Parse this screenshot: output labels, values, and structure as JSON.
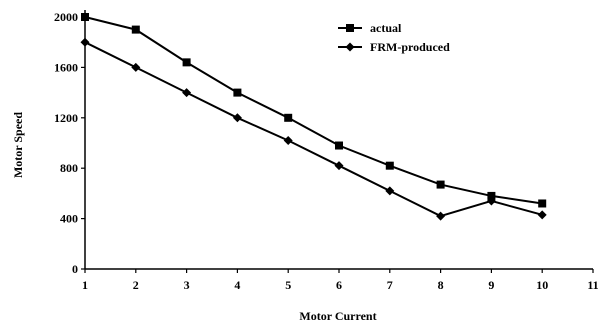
{
  "chart_data": {
    "type": "line",
    "xlabel": "Motor Current",
    "ylabel": "Motor Speed",
    "xlim": [
      1,
      11
    ],
    "ylim": [
      0,
      2000
    ],
    "x_ticks": [
      "1",
      "2",
      "3",
      "4",
      "5",
      "6",
      "7",
      "8",
      "9",
      "10",
      "11"
    ],
    "y_ticks": [
      "0",
      "400",
      "800",
      "1200",
      "1600",
      "2000"
    ],
    "grid": false,
    "legend_position": "top-right",
    "series": [
      {
        "name": "actual",
        "marker": "square",
        "x": [
          1,
          2,
          3,
          4,
          5,
          6,
          7,
          8,
          9,
          10
        ],
        "values": [
          2000,
          1900,
          1640,
          1400,
          1200,
          980,
          820,
          670,
          580,
          520
        ]
      },
      {
        "name": "FRM-produced",
        "marker": "diamond",
        "x": [
          1,
          2,
          3,
          4,
          5,
          6,
          7,
          8,
          9,
          10
        ],
        "values": [
          1800,
          1600,
          1400,
          1200,
          1020,
          820,
          620,
          420,
          540,
          430
        ]
      }
    ]
  }
}
